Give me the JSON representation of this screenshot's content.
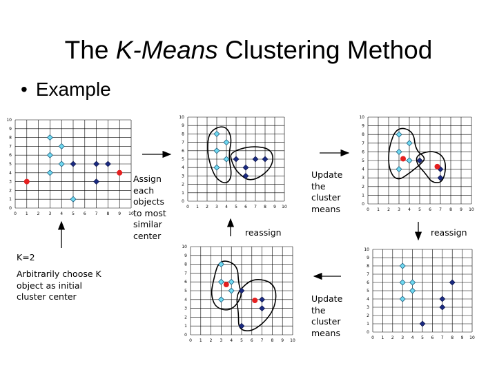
{
  "slide": {
    "title_pre": "The ",
    "title_em": "K-Means",
    "title_post": " Clustering Method",
    "bullet": "Example"
  },
  "labels": {
    "k_label": "K=2",
    "choose": "Arbitrarily choose K\nobject as initial\ncluster center",
    "assign": "Assign\neach\nobjects\nto most\nsimilar\ncenter",
    "update_top": "Update\nthe\ncluster\nmeans",
    "update_bottom": "Update\nthe\ncluster\nmeans",
    "reassign_mid": "reassign",
    "reassign_right": "reassign"
  },
  "colors": {
    "light_point": "#6fd8f0",
    "dark_point": "#1a2a80",
    "center": "#e52020",
    "grid": "#000000",
    "arrow": "#000000"
  },
  "chart_data": [
    {
      "id": "initial-centers",
      "type": "scatter",
      "tick_labels": [
        "0",
        "1",
        "2",
        "3",
        "4",
        "5",
        "6",
        "7",
        "8",
        "9",
        "10"
      ],
      "xlim": [
        0,
        10
      ],
      "ylim": [
        0,
        10
      ],
      "light": [
        [
          3,
          8
        ],
        [
          4,
          7
        ],
        [
          3,
          6
        ],
        [
          4,
          5
        ],
        [
          3,
          4
        ],
        [
          5,
          1
        ]
      ],
      "dark": [
        [
          5,
          5
        ],
        [
          7,
          5
        ],
        [
          8,
          5
        ],
        [
          7,
          3
        ]
      ],
      "centers": [
        [
          1,
          3
        ],
        [
          9,
          4
        ]
      ],
      "enclosures": []
    },
    {
      "id": "first-assignment",
      "type": "scatter",
      "tick_labels": [
        "0",
        "1",
        "2",
        "3",
        "4",
        "5",
        "6",
        "7",
        "8",
        "9",
        "10"
      ],
      "xlim": [
        0,
        10
      ],
      "ylim": [
        0,
        10
      ],
      "light": [
        [
          3,
          8
        ],
        [
          4,
          7
        ],
        [
          3,
          6
        ],
        [
          4,
          5
        ],
        [
          3,
          4
        ]
      ],
      "dark": [
        [
          5,
          5
        ],
        [
          7,
          5
        ],
        [
          8,
          5
        ],
        [
          6,
          4
        ],
        [
          6,
          3
        ]
      ],
      "centers": [],
      "enclosures": [
        "left",
        "right"
      ]
    },
    {
      "id": "updated-means",
      "type": "scatter",
      "tick_labels": [
        "0",
        "1",
        "2",
        "3",
        "4",
        "5",
        "6",
        "7",
        "8",
        "9",
        "10"
      ],
      "xlim": [
        0,
        10
      ],
      "ylim": [
        0,
        10
      ],
      "light": [
        [
          3,
          8
        ],
        [
          4,
          7
        ],
        [
          3,
          6
        ],
        [
          4,
          5
        ],
        [
          3,
          4
        ]
      ],
      "dark": [
        [
          5,
          5
        ],
        [
          7,
          4
        ],
        [
          7,
          3
        ]
      ],
      "centers": [
        [
          3.4,
          5.2
        ],
        [
          6.7,
          4.3
        ]
      ],
      "enclosures": [
        "left",
        "right"
      ]
    },
    {
      "id": "reassigned",
      "type": "scatter",
      "tick_labels": [
        "0",
        "1",
        "2",
        "3",
        "4",
        "5",
        "6",
        "7",
        "8",
        "9",
        "10"
      ],
      "xlim": [
        0,
        10
      ],
      "ylim": [
        0,
        10
      ],
      "light": [
        [
          3,
          8
        ],
        [
          3,
          6
        ],
        [
          4,
          6
        ],
        [
          3,
          4
        ],
        [
          4,
          5
        ]
      ],
      "dark": [
        [
          5,
          5
        ],
        [
          7,
          4
        ],
        [
          7,
          3
        ],
        [
          5,
          1
        ]
      ],
      "centers": [
        [
          3.5,
          5.7
        ],
        [
          6.3,
          3.9
        ]
      ],
      "enclosures": [
        "left",
        "right"
      ]
    },
    {
      "id": "final",
      "type": "scatter",
      "tick_labels": [
        "0",
        "1",
        "2",
        "3",
        "4",
        "5",
        "6",
        "7",
        "8",
        "9",
        "10"
      ],
      "xlim": [
        0,
        10
      ],
      "ylim": [
        0,
        10
      ],
      "light": [
        [
          3,
          8
        ],
        [
          3,
          6
        ],
        [
          4,
          6
        ],
        [
          3,
          4
        ],
        [
          4,
          5
        ]
      ],
      "dark": [
        [
          8,
          6
        ],
        [
          7,
          4
        ],
        [
          7,
          3
        ],
        [
          5,
          1
        ]
      ],
      "centers": [],
      "enclosures": []
    }
  ]
}
